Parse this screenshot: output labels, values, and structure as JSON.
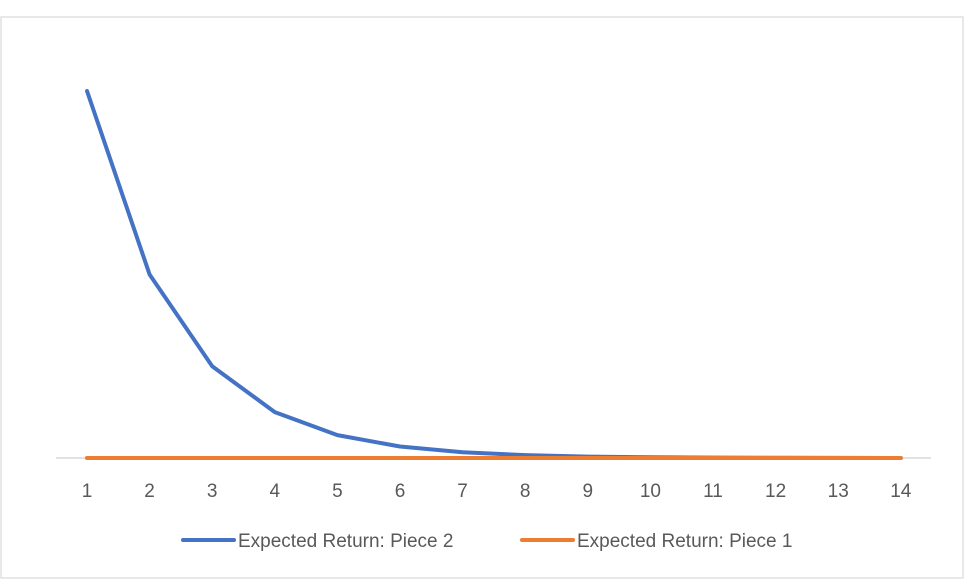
{
  "chart_data": {
    "type": "line",
    "x": [
      "1",
      "2",
      "3",
      "4",
      "5",
      "6",
      "7",
      "8",
      "9",
      "10",
      "11",
      "12",
      "13",
      "14"
    ],
    "series": [
      {
        "name": "Expected Return: Piece 2",
        "color": "#4472C4",
        "values": [
          1.0,
          0.5,
          0.25,
          0.125,
          0.0625,
          0.03125,
          0.0156,
          0.0078,
          0.0039,
          0.002,
          0.001,
          0.0005,
          0.0002,
          0.0001
        ]
      },
      {
        "name": "Expected Return: Piece 1",
        "color": "#ED7D31",
        "values": [
          0,
          0,
          0,
          0,
          0,
          0,
          0,
          0,
          0,
          0,
          0,
          0,
          0,
          0
        ]
      }
    ],
    "ylim": [
      0,
      1.1
    ],
    "grid": false,
    "legend_position": "bottom",
    "axis_color": "#D9D9D9",
    "border_color": "#D9D9D9"
  }
}
